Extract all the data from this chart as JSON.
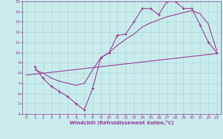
{
  "xlabel": "Windchill (Refroidissement éolien,°C)",
  "ylabel": "",
  "bg_color": "#c8ecec",
  "grid_color": "#aad4d4",
  "line_color": "#993399",
  "xlim": [
    -0.5,
    23.5
  ],
  "ylim": [
    4,
    15
  ],
  "xticks": [
    0,
    1,
    2,
    3,
    4,
    5,
    6,
    7,
    8,
    9,
    10,
    11,
    12,
    13,
    14,
    15,
    16,
    17,
    18,
    19,
    20,
    21,
    22,
    23
  ],
  "yticks": [
    4,
    5,
    6,
    7,
    8,
    9,
    10,
    11,
    12,
    13,
    14,
    15
  ],
  "data_line": {
    "x": [
      1,
      2,
      3,
      4,
      5,
      6,
      7,
      8,
      9,
      10,
      11,
      12,
      13,
      14,
      15,
      16,
      17,
      18,
      19,
      20,
      21,
      22,
      23
    ],
    "y": [
      8.6,
      7.5,
      6.7,
      6.2,
      5.7,
      5.0,
      4.4,
      6.5,
      9.5,
      10.0,
      11.7,
      11.8,
      13.0,
      14.3,
      14.3,
      13.7,
      15.0,
      15.0,
      14.3,
      14.3,
      12.7,
      11.0,
      10.0
    ]
  },
  "trend_line": {
    "x": [
      0,
      23
    ],
    "y": [
      7.8,
      9.9
    ]
  },
  "smooth_line": {
    "x": [
      1,
      2,
      3,
      4,
      5,
      6,
      7,
      8,
      9,
      10,
      11,
      12,
      13,
      14,
      15,
      16,
      17,
      18,
      19,
      20,
      21,
      22,
      23
    ],
    "y": [
      8.3,
      8.0,
      7.5,
      7.2,
      7.0,
      6.8,
      7.0,
      8.3,
      9.5,
      10.0,
      10.7,
      11.3,
      11.8,
      12.5,
      12.9,
      13.2,
      13.5,
      13.7,
      13.9,
      14.1,
      13.8,
      12.8,
      10.2
    ]
  }
}
